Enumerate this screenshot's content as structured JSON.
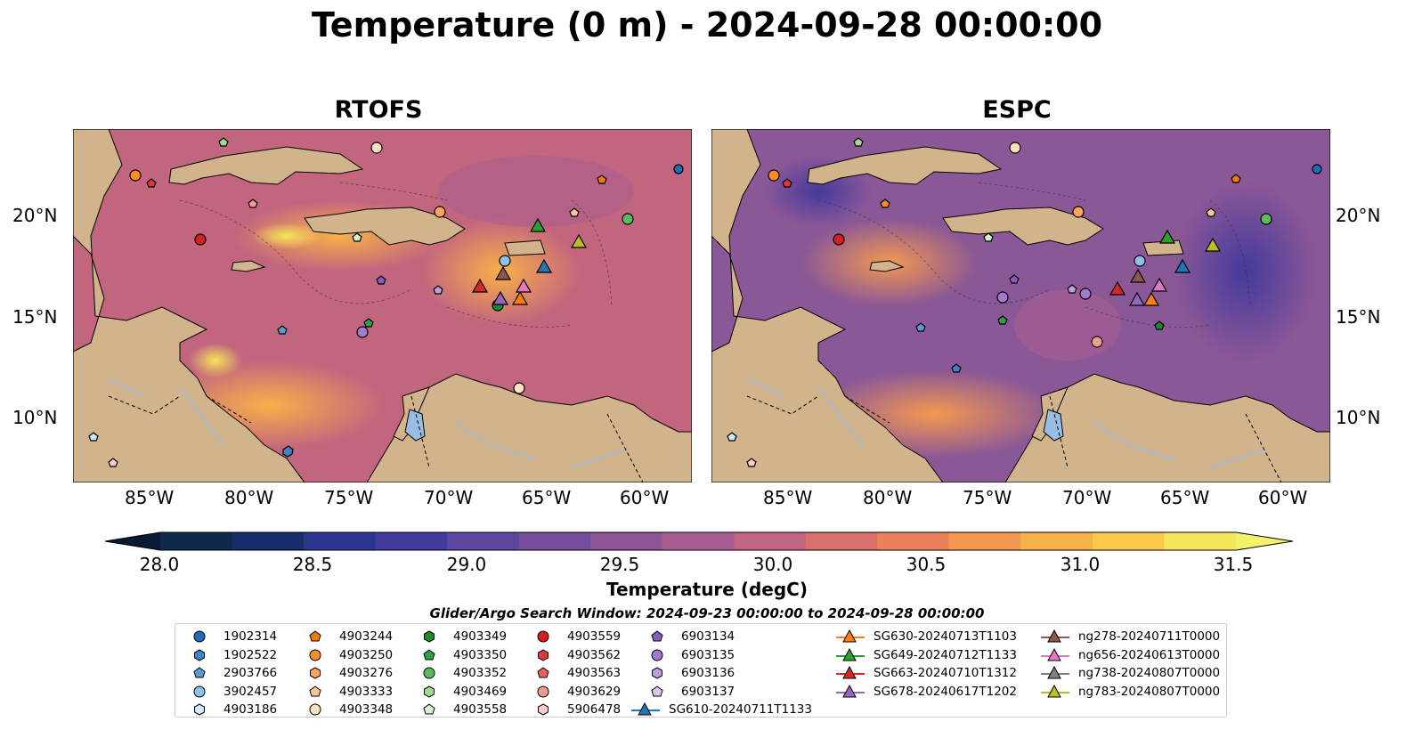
{
  "title": "Temperature (0 m) - 2024-09-28 00:00:00",
  "panels": [
    "RTOFS",
    "ESPC"
  ],
  "lon_ticks": [
    "85°W",
    "80°W",
    "75°W",
    "70°W",
    "65°W",
    "60°W"
  ],
  "lat_ticks": [
    "20°N",
    "15°N",
    "10°N"
  ],
  "colorbar": {
    "ticks": [
      "28.0",
      "28.5",
      "29.0",
      "29.5",
      "30.0",
      "30.5",
      "31.0",
      "31.5"
    ],
    "label": "Temperature (degC)",
    "range": [
      28.0,
      31.5
    ],
    "colors": [
      "#0d2a4a",
      "#162e6a",
      "#2a3590",
      "#443a9b",
      "#5c469e",
      "#744e9c",
      "#8f5599",
      "#a85d90",
      "#c16580",
      "#d9706c",
      "#ea8159",
      "#f39850",
      "#f8b048",
      "#fac94c",
      "#f5e55a"
    ]
  },
  "search_window": "Glider/Argo Search Window: 2024-09-23 00:00:00 to 2024-09-28 00:00:00",
  "legend": [
    {
      "label": "1902314",
      "marker": "circle",
      "color": "#1f6db5"
    },
    {
      "label": "1902522",
      "marker": "hexagon",
      "color": "#3f83c2"
    },
    {
      "label": "2903766",
      "marker": "pentagon",
      "color": "#5a9bd5"
    },
    {
      "label": "3902457",
      "marker": "circle",
      "color": "#8fc0e8"
    },
    {
      "label": "4903186",
      "marker": "hexagon",
      "color": "#d3e9f8"
    },
    {
      "label": "4903244",
      "marker": "pentagon",
      "color": "#f07b0f"
    },
    {
      "label": "4903250",
      "marker": "circle",
      "color": "#fb8d28"
    },
    {
      "label": "4903276",
      "marker": "hexagon",
      "color": "#fda55c"
    },
    {
      "label": "4903333",
      "marker": "pentagon",
      "color": "#fcc792"
    },
    {
      "label": "4903348",
      "marker": "circle",
      "color": "#fde0c4"
    },
    {
      "label": "4903349",
      "marker": "hexagon",
      "color": "#1a8a2a"
    },
    {
      "label": "4903350",
      "marker": "pentagon",
      "color": "#2ea23d"
    },
    {
      "label": "4903352",
      "marker": "circle",
      "color": "#5cbc5c"
    },
    {
      "label": "4903469",
      "marker": "hexagon",
      "color": "#9edc92"
    },
    {
      "label": "4903558",
      "marker": "pentagon",
      "color": "#d4f5c8"
    },
    {
      "label": "4903559",
      "marker": "circle",
      "color": "#d62020"
    },
    {
      "label": "4903562",
      "marker": "hexagon",
      "color": "#e03838"
    },
    {
      "label": "4903563",
      "marker": "pentagon",
      "color": "#ec6060"
    },
    {
      "label": "4903629",
      "marker": "circle",
      "color": "#f49898"
    },
    {
      "label": "5906478",
      "marker": "hexagon",
      "color": "#fbcaca"
    },
    {
      "label": "6903134",
      "marker": "pentagon",
      "color": "#8a5bbf"
    },
    {
      "label": "6903135",
      "marker": "circle",
      "color": "#a27bcf"
    },
    {
      "label": "6903136",
      "marker": "hexagon",
      "color": "#bda0de"
    },
    {
      "label": "6903137",
      "marker": "pentagon",
      "color": "#d9c6ee"
    },
    {
      "label": "SG610-20240711T1133",
      "marker": "triangle",
      "color": "#1f77b4"
    },
    {
      "label": "SG630-20240713T1103",
      "marker": "triangle",
      "color": "#ff7f0e"
    },
    {
      "label": "SG649-20240712T1133",
      "marker": "triangle",
      "color": "#2ca02c"
    },
    {
      "label": "SG663-20240710T1312",
      "marker": "triangle",
      "color": "#d62728"
    },
    {
      "label": "SG678-20240617T1202",
      "marker": "triangle",
      "color": "#9467bd"
    },
    {
      "label": "ng278-20240711T0000",
      "marker": "triangle",
      "color": "#8c564b"
    },
    {
      "label": "ng656-20240613T0000",
      "marker": "triangle",
      "color": "#e377c2"
    },
    {
      "label": "ng738-20240807T0000",
      "marker": "triangle",
      "color": "#7f7f7f"
    },
    {
      "label": "ng783-20240807T0000",
      "marker": "triangle",
      "color": "#bcbd22"
    }
  ]
}
